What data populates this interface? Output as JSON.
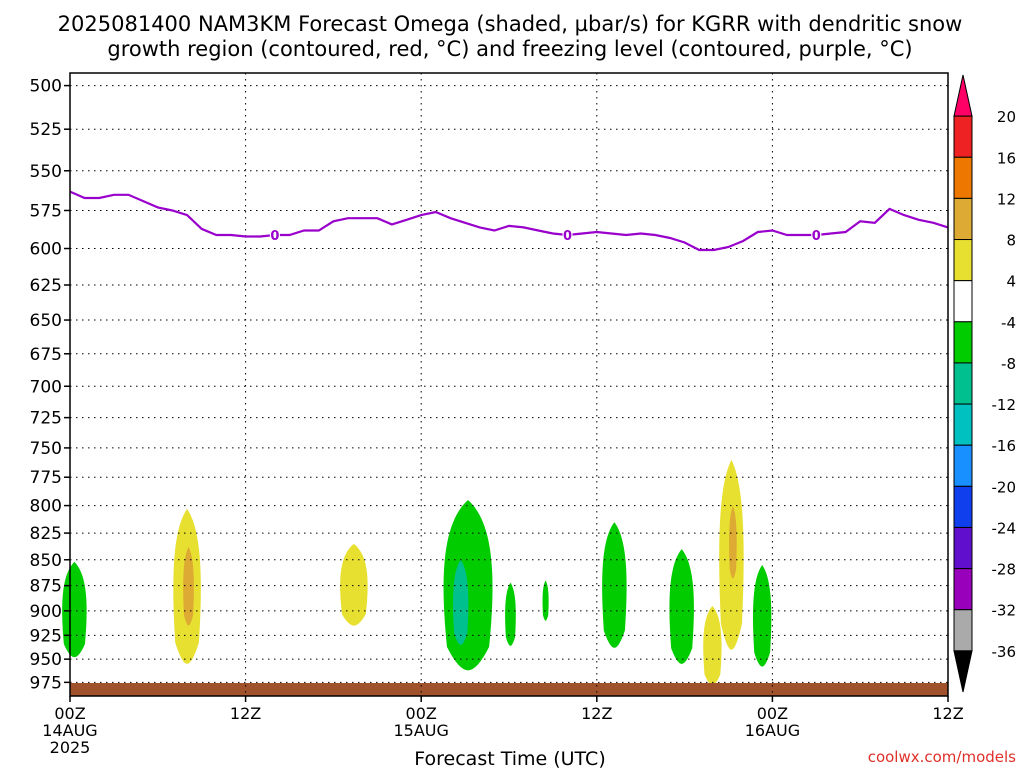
{
  "title_line1": "2025081400 NAM3KM Forecast Omega (shaded, µbar/s) for KGRR with dendritic snow",
  "title_line2": "growth region (contoured, red, °C) and freezing level (contoured, purple, °C)",
  "watermark": "coolwx.com/models",
  "colors": {
    "freezing_level": "#9900cc",
    "ground": "#a0522d",
    "grid": "#000000"
  },
  "chart_data": {
    "type": "heatmap",
    "xlabel": "Forecast Time (UTC)",
    "ylabel": "",
    "x_range_hours": [
      0,
      60
    ],
    "y_range_mb": [
      493,
      990
    ],
    "y_scale": "log-pressure",
    "grid": true,
    "y_ticks": [
      500,
      525,
      550,
      575,
      600,
      625,
      650,
      675,
      700,
      725,
      750,
      775,
      800,
      825,
      850,
      875,
      900,
      925,
      950,
      975
    ],
    "x_ticks": [
      {
        "hour": 0,
        "lines": [
          "00Z",
          "14AUG",
          "2025"
        ]
      },
      {
        "hour": 12,
        "lines": [
          "12Z"
        ]
      },
      {
        "hour": 24,
        "lines": [
          "00Z",
          "15AUG"
        ]
      },
      {
        "hour": 36,
        "lines": [
          "12Z"
        ]
      },
      {
        "hour": 48,
        "lines": [
          "00Z",
          "16AUG"
        ]
      },
      {
        "hour": 60,
        "lines": [
          "12Z"
        ]
      }
    ],
    "colorbar": {
      "labels": [
        "20",
        "16",
        "12",
        "8",
        "4",
        "-4",
        "-8",
        "-12",
        "-16",
        "-20",
        "-24",
        "-28",
        "-32",
        "-36"
      ],
      "colors": [
        "#ff0066",
        "#ee2222",
        "#ee7700",
        "#ddaa33",
        "#e8e030",
        "#ffffff",
        "#00cc00",
        "#00c090",
        "#00c0c0",
        "#1890ff",
        "#1040ee",
        "#6010cc",
        "#9900bb",
        "#aaaaaa",
        "#000000"
      ]
    },
    "freezing_level": {
      "label": "0",
      "label_hours": [
        14,
        34,
        51
      ],
      "hours": [
        0,
        1,
        2,
        3,
        4,
        5,
        6,
        7,
        8,
        9,
        10,
        11,
        12,
        13,
        14,
        15,
        16,
        17,
        18,
        19,
        20,
        21,
        22,
        23,
        24,
        25,
        26,
        27,
        28,
        29,
        30,
        31,
        32,
        33,
        34,
        35,
        36,
        37,
        38,
        39,
        40,
        41,
        42,
        43,
        44,
        45,
        46,
        47,
        48,
        49,
        50,
        51,
        52,
        53,
        54,
        55,
        56,
        57,
        58,
        59,
        60
      ],
      "pressure": [
        563,
        567,
        567,
        565,
        565,
        569,
        573,
        575,
        578,
        587,
        591,
        591,
        592,
        592,
        591,
        591,
        588,
        588,
        582,
        580,
        580,
        580,
        584,
        581,
        578,
        576,
        580,
        583,
        586,
        588,
        585,
        586,
        588,
        590,
        591,
        590,
        589,
        590,
        591,
        590,
        591,
        593,
        596,
        601,
        601,
        599,
        595,
        589,
        588,
        591,
        591,
        591,
        590,
        589,
        582,
        583,
        574,
        578,
        581,
        583,
        586
      ]
    },
    "omega_regions": [
      {
        "hour": 0.3,
        "half_width": 0.8,
        "top_mb": 852,
        "bottom_mb": 948,
        "value": -6
      },
      {
        "hour": 8.0,
        "half_width": 0.9,
        "top_mb": 803,
        "bottom_mb": 955,
        "value": 6
      },
      {
        "hour": 8.1,
        "half_width": 0.35,
        "top_mb": 838,
        "bottom_mb": 915,
        "value": 10
      },
      {
        "hour": 19.4,
        "half_width": 0.9,
        "top_mb": 835,
        "bottom_mb": 915,
        "value": 6
      },
      {
        "hour": 27.2,
        "half_width": 1.6,
        "top_mb": 795,
        "bottom_mb": 962,
        "value": -6
      },
      {
        "hour": 26.7,
        "half_width": 0.5,
        "top_mb": 850,
        "bottom_mb": 935,
        "value": -10
      },
      {
        "hour": 30.1,
        "half_width": 0.35,
        "top_mb": 872,
        "bottom_mb": 936,
        "value": -6
      },
      {
        "hour": 32.5,
        "half_width": 0.2,
        "top_mb": 870,
        "bottom_mb": 910,
        "value": -6
      },
      {
        "hour": 37.2,
        "half_width": 0.8,
        "top_mb": 815,
        "bottom_mb": 938,
        "value": -6
      },
      {
        "hour": 41.8,
        "half_width": 0.8,
        "top_mb": 840,
        "bottom_mb": 955,
        "value": -6
      },
      {
        "hour": 43.9,
        "half_width": 0.6,
        "top_mb": 895,
        "bottom_mb": 978,
        "value": 6
      },
      {
        "hour": 45.2,
        "half_width": 0.8,
        "top_mb": 760,
        "bottom_mb": 940,
        "value": 6
      },
      {
        "hour": 45.3,
        "half_width": 0.25,
        "top_mb": 800,
        "bottom_mb": 868,
        "value": 10
      },
      {
        "hour": 47.3,
        "half_width": 0.6,
        "top_mb": 855,
        "bottom_mb": 958,
        "value": -6
      }
    ]
  }
}
